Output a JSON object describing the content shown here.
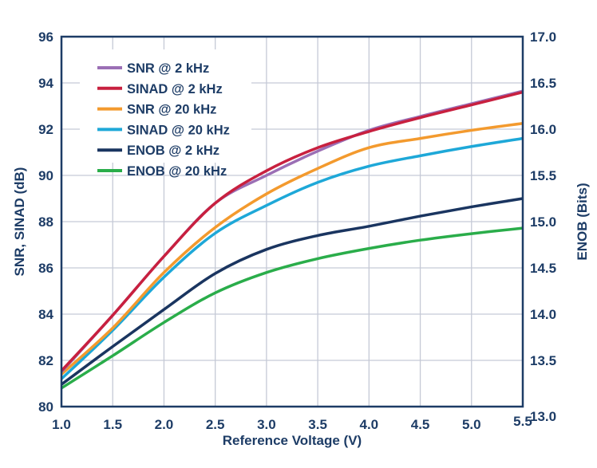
{
  "chart_data": {
    "type": "line",
    "xlabel": "Reference Voltage (V)",
    "ylabel": "SNR, SINAD (dB)",
    "ylabel_right": "ENOB (Bits)",
    "xlim": [
      1.0,
      5.5
    ],
    "ylim": [
      80,
      96
    ],
    "ylim_right": [
      13.0,
      17.0
    ],
    "x_ticks": [
      "1.0",
      "1.5",
      "2.0",
      "2.5",
      "3.0",
      "3.5",
      "4.0",
      "4.5",
      "5.0",
      "5.5"
    ],
    "y_ticks": [
      "80",
      "82",
      "84",
      "86",
      "88",
      "90",
      "92",
      "94",
      "96"
    ],
    "y_ticks_right": [
      "13.0",
      "13.5",
      "14.0",
      "14.5",
      "15.0",
      "15.5",
      "16.0",
      "16.5",
      "17.0"
    ],
    "grid": true,
    "legend_position": "top-left",
    "x": [
      1.0,
      1.5,
      2.0,
      2.5,
      3.0,
      3.5,
      4.0,
      4.5,
      5.0,
      5.5
    ],
    "series": [
      {
        "name": "SNR @ 2 kHz",
        "axis": "left",
        "color": "#9b6fb5",
        "values": [
          81.5,
          83.95,
          86.5,
          88.8,
          90.0,
          91.05,
          91.95,
          92.55,
          93.1,
          93.65
        ]
      },
      {
        "name": "SINAD @ 2 kHz",
        "axis": "left",
        "color": "#c8203f",
        "values": [
          81.55,
          83.95,
          86.5,
          88.8,
          90.2,
          91.2,
          91.9,
          92.5,
          93.05,
          93.6
        ]
      },
      {
        "name": "SNR @ 20 kHz",
        "axis": "left",
        "color": "#f39a2e",
        "values": [
          81.4,
          83.4,
          85.8,
          87.75,
          89.2,
          90.3,
          91.2,
          91.6,
          91.95,
          92.25
        ]
      },
      {
        "name": "SINAD @ 20 kHz",
        "axis": "left",
        "color": "#1ea8d8",
        "values": [
          81.2,
          83.3,
          85.6,
          87.5,
          88.7,
          89.7,
          90.4,
          90.85,
          91.25,
          91.6
        ]
      },
      {
        "name": "ENOB @ 2 kHz",
        "axis": "right",
        "color": "#1a3560",
        "values": [
          13.24,
          13.65,
          14.05,
          14.44,
          14.7,
          14.85,
          14.95,
          15.06,
          15.16,
          15.25
        ]
      },
      {
        "name": "ENOB @ 20 kHz",
        "axis": "right",
        "color": "#2aad4a",
        "values": [
          13.2,
          13.55,
          13.91,
          14.23,
          14.45,
          14.6,
          14.71,
          14.8,
          14.87,
          14.93
        ]
      }
    ]
  }
}
